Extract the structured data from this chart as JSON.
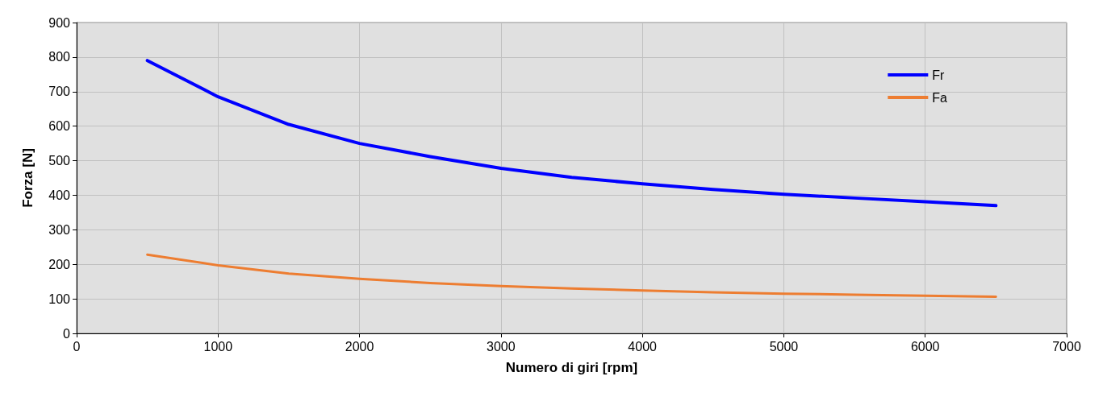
{
  "chart_data": {
    "type": "line",
    "xlabel": "Numero di giri [rpm]",
    "ylabel": "Forza [N]",
    "x": [
      500,
      1000,
      1500,
      2000,
      2500,
      3000,
      3500,
      4000,
      4500,
      5000,
      5500,
      6000,
      6500
    ],
    "series": [
      {
        "name": "Fr",
        "color": "#0000ff",
        "values": [
          790,
          685,
          605,
          550,
          512,
          478,
          452,
          433,
          417,
          403,
          392,
          381,
          370
        ]
      },
      {
        "name": "Fa",
        "color": "#ed7d31",
        "values": [
          228,
          197,
          173,
          158,
          146,
          137,
          130,
          124,
          119,
          115,
          112,
          109,
          106
        ]
      }
    ],
    "xlim": [
      0,
      7000
    ],
    "xticks": [
      0,
      1000,
      2000,
      3000,
      4000,
      5000,
      6000,
      7000
    ],
    "ylim": [
      0,
      900
    ],
    "yticks": [
      0,
      100,
      200,
      300,
      400,
      500,
      600,
      700,
      800,
      900
    ],
    "grid": true,
    "legend": "top right",
    "marker": "none",
    "line_style": "solid"
  }
}
